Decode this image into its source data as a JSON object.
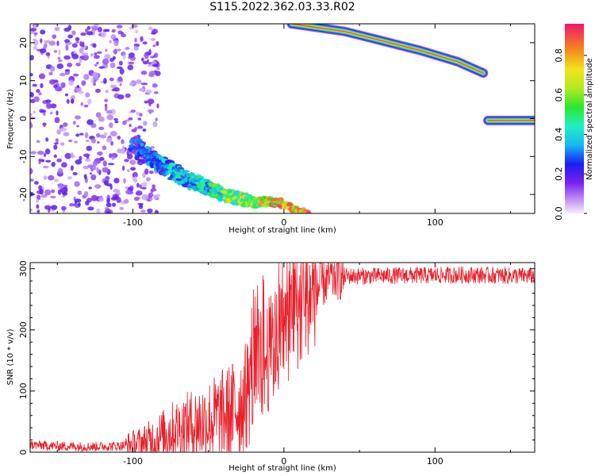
{
  "title": "S115.2022.362.03.33.R02",
  "colors": {
    "snr_line": "#e8202a",
    "frame": "#000000"
  },
  "chart_data": [
    {
      "type": "heatmap",
      "xlabel": "Height of straight line (km)",
      "ylabel": "Frequency (Hz)",
      "xlim": [
        -168,
        166
      ],
      "ylim": [
        -25,
        25
      ],
      "xticks": [
        -100,
        0,
        100
      ],
      "yticks": [
        -20,
        -10,
        0,
        10,
        20
      ],
      "colorbar": {
        "label": "Normalized spectral amplitude",
        "range": [
          0,
          0.96
        ],
        "ticks": [
          "0.0",
          "0.2",
          "0.4",
          "0.6",
          "0.8"
        ],
        "colormap": "rainbow (violet to red)"
      },
      "features": [
        {
          "name": "broadband noise",
          "x_range": [
            -168,
            -95
          ],
          "y_range": [
            -25,
            25
          ],
          "amplitude": 0.1
        },
        {
          "name": "low branch",
          "points": [
            [
              -100,
              -7
            ],
            [
              -70,
              -15
            ],
            [
              -40,
              -20
            ],
            [
              -20,
              -22
            ],
            [
              -5,
              -22
            ],
            [
              15,
              -25
            ]
          ],
          "amplitude_peak": 0.9
        },
        {
          "name": "high branch",
          "points": [
            [
              5,
              25
            ],
            [
              40,
              23
            ],
            [
              60,
              21
            ],
            [
              90,
              18
            ],
            [
              115,
              15
            ],
            [
              132,
              12
            ]
          ],
          "amplitude_peak": 0.95
        },
        {
          "name": "zero-frequency line",
          "points": [
            [
              135,
              -0.5
            ],
            [
              166,
              -0.5
            ]
          ],
          "amplitude_peak": 0.96
        }
      ]
    },
    {
      "type": "line",
      "xlabel": "Height of straight line (km)",
      "ylabel": "SNR (10 * v/v)",
      "xlim": [
        -168,
        166
      ],
      "ylim": [
        0,
        310
      ],
      "xticks": [
        -100,
        0,
        100
      ],
      "yticks": [
        0,
        100,
        200,
        300
      ],
      "series": [
        {
          "x": [
            -168,
            -150,
            -130,
            -110,
            -95,
            -85,
            -75,
            -60,
            -45,
            -35,
            -25,
            -20,
            -15,
            -10,
            -5,
            0,
            5,
            10,
            15,
            20,
            25,
            30,
            35,
            40,
            50,
            60,
            80,
            100,
            120,
            140,
            166
          ],
          "y": [
            12,
            10,
            9,
            10,
            13,
            22,
            35,
            45,
            55,
            65,
            90,
            120,
            140,
            160,
            180,
            200,
            215,
            230,
            250,
            265,
            275,
            283,
            287,
            288,
            288,
            288,
            289,
            289,
            290,
            289,
            288
          ]
        }
      ]
    }
  ]
}
